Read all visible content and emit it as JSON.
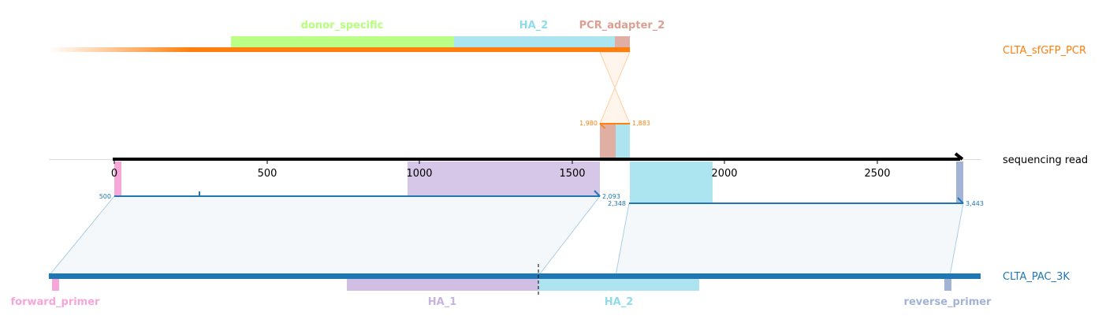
{
  "tracks": {
    "top": {
      "label": "CLTA_sfGFP_PCR",
      "color": "#ff7f0e"
    },
    "read": {
      "label": "sequencing read",
      "color": "#000000"
    },
    "bottom": {
      "label": "CLTA_PAC_3K",
      "color": "#1f77b4"
    }
  },
  "axis": {
    "ticks": [
      "0",
      "500",
      "1000",
      "1500",
      "2000",
      "2500"
    ]
  },
  "top_features": [
    {
      "name": "donor_specific",
      "color": "#b5ff7a"
    },
    {
      "name": "HA_2",
      "color": "#8fdce8"
    },
    {
      "name": "PCR_adapter_2",
      "color": "#dba092"
    }
  ],
  "bottom_features": [
    {
      "name": "forward_primer",
      "color": "#f7a6d8"
    },
    {
      "name": "HA_1",
      "color": "#c8b3e0"
    },
    {
      "name": "HA_2",
      "color": "#8fdce8"
    },
    {
      "name": "reverse_primer",
      "color": "#a3b3d6"
    }
  ],
  "coord_labels": {
    "top_left": "1,980",
    "top_right": "1,883",
    "seg1_start": "500",
    "seg1_end": "2,093",
    "seg2_start": "2,348",
    "seg2_end": "3,443"
  }
}
